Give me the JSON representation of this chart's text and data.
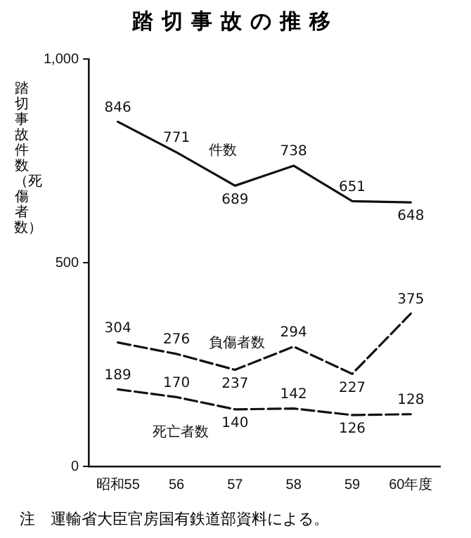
{
  "chart_data": {
    "type": "line",
    "title": "踏切事故の推移",
    "ylabel": "踏切事故件数（死傷者数）",
    "categories": [
      "昭和55",
      "56",
      "57",
      "58",
      "59",
      "60年度"
    ],
    "series": [
      {
        "name": "件数",
        "color": "#111111",
        "line_style": "solid",
        "values": [
          846,
          771,
          689,
          738,
          651,
          648
        ]
      },
      {
        "name": "負傷者数",
        "color": "#111111",
        "line_style": "dashed",
        "values": [
          304,
          276,
          237,
          294,
          227,
          375
        ]
      },
      {
        "name": "死亡者数",
        "color": "#111111",
        "line_style": "dashed",
        "values": [
          189,
          170,
          140,
          142,
          126,
          128
        ]
      }
    ],
    "ylim": [
      0,
      1000
    ],
    "yticks": [
      0,
      500,
      {
        "value": 1000,
        "label": "1,000"
      }
    ],
    "grid": false,
    "legend": false,
    "marker": "none",
    "data_labels": true,
    "annotations": [
      "注　運輸省大臣官房国有鉄道部資料による。"
    ]
  }
}
